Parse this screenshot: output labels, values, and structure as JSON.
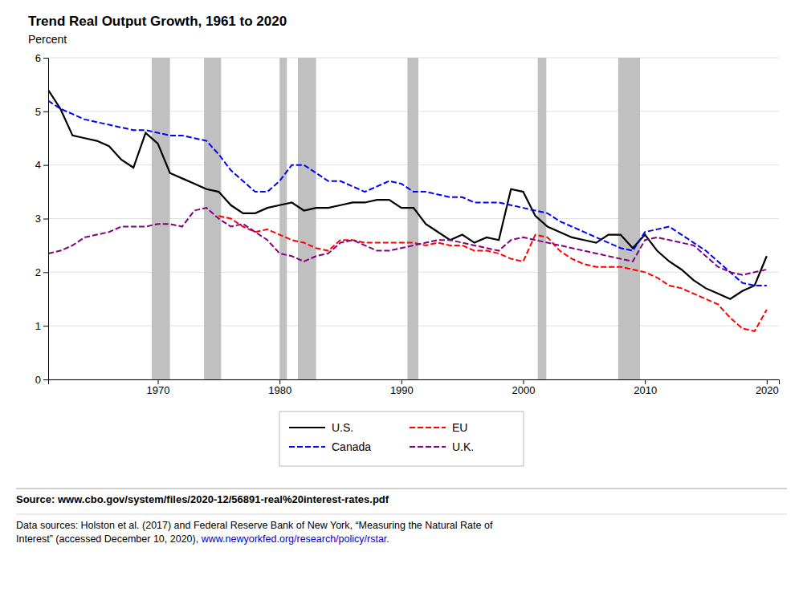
{
  "chart_data": {
    "type": "line",
    "title": "Trend Real Output Growth, 1961 to 2020",
    "y_label": "Percent",
    "x": [
      1961,
      1962,
      1963,
      1964,
      1965,
      1966,
      1967,
      1968,
      1969,
      1970,
      1971,
      1972,
      1973,
      1974,
      1975,
      1976,
      1977,
      1978,
      1979,
      1980,
      1981,
      1982,
      1983,
      1984,
      1985,
      1986,
      1987,
      1988,
      1989,
      1990,
      1991,
      1992,
      1993,
      1994,
      1995,
      1996,
      1997,
      1998,
      1999,
      2000,
      2001,
      2002,
      2003,
      2004,
      2005,
      2006,
      2007,
      2008,
      2009,
      2010,
      2011,
      2012,
      2013,
      2014,
      2015,
      2016,
      2017,
      2018,
      2019,
      2020
    ],
    "xlim": [
      1961,
      2021
    ],
    "xticks": [
      1970,
      1980,
      1990,
      2000,
      2010,
      2020
    ],
    "ylim": [
      0,
      6
    ],
    "yticks": [
      0,
      1,
      2,
      3,
      4,
      5,
      6
    ],
    "grid": true,
    "legend": "bottom",
    "shaded": {
      "color": "#c0c0c0",
      "ranges": [
        [
          1969.5,
          1971.0
        ],
        [
          1973.8,
          1975.2
        ],
        [
          1980.0,
          1980.6
        ],
        [
          1981.5,
          1983.0
        ],
        [
          1990.5,
          1991.4
        ],
        [
          2001.2,
          2001.9
        ],
        [
          2007.8,
          2009.6
        ]
      ]
    },
    "series": [
      {
        "name": "U.S.",
        "color": "#000000",
        "line_style": "solid",
        "values": [
          5.4,
          5.05,
          4.55,
          4.5,
          4.45,
          4.35,
          4.1,
          3.95,
          4.6,
          4.4,
          3.85,
          3.75,
          3.65,
          3.55,
          3.5,
          3.25,
          3.1,
          3.1,
          3.2,
          3.25,
          3.3,
          3.15,
          3.2,
          3.2,
          3.25,
          3.3,
          3.3,
          3.35,
          3.35,
          3.2,
          3.2,
          2.9,
          2.75,
          2.6,
          2.7,
          2.55,
          2.65,
          2.6,
          3.55,
          3.5,
          3.05,
          2.85,
          2.75,
          2.65,
          2.6,
          2.55,
          2.7,
          2.7,
          2.45,
          2.7,
          2.4,
          2.2,
          2.05,
          1.85,
          1.7,
          1.6,
          1.5,
          1.65,
          1.75,
          2.3
        ]
      },
      {
        "name": "Canada",
        "color": "#0000ff",
        "line_style": "dashed",
        "values": [
          5.2,
          5.05,
          4.95,
          4.85,
          4.8,
          4.75,
          4.7,
          4.65,
          4.65,
          4.6,
          4.55,
          4.55,
          4.5,
          4.45,
          4.2,
          3.9,
          3.7,
          3.5,
          3.5,
          3.7,
          4.0,
          4.0,
          3.85,
          3.7,
          3.7,
          3.6,
          3.5,
          3.6,
          3.7,
          3.65,
          3.5,
          3.5,
          3.45,
          3.4,
          3.4,
          3.3,
          3.3,
          3.3,
          3.25,
          3.2,
          3.15,
          3.1,
          2.95,
          2.85,
          2.75,
          2.65,
          2.55,
          2.45,
          2.4,
          2.75,
          2.8,
          2.85,
          2.7,
          2.55,
          2.4,
          2.2,
          2.0,
          1.8,
          1.75,
          1.75
        ]
      },
      {
        "name": "EU",
        "color": "#ff0000",
        "line_style": "dashed",
        "values": [
          null,
          null,
          null,
          null,
          null,
          null,
          null,
          null,
          null,
          null,
          null,
          null,
          null,
          null,
          3.05,
          3.0,
          2.85,
          2.75,
          2.8,
          2.7,
          2.6,
          2.55,
          2.45,
          2.4,
          2.6,
          2.6,
          2.55,
          2.55,
          2.55,
          2.55,
          2.55,
          2.5,
          2.55,
          2.5,
          2.5,
          2.4,
          2.4,
          2.35,
          2.25,
          2.2,
          2.7,
          2.65,
          2.4,
          2.25,
          2.15,
          2.1,
          2.1,
          2.1,
          2.05,
          2.0,
          1.9,
          1.75,
          1.7,
          1.6,
          1.5,
          1.4,
          1.15,
          0.95,
          0.9,
          1.3
        ]
      },
      {
        "name": "U.K.",
        "color": "#800080",
        "line_style": "dashed",
        "values": [
          2.35,
          2.4,
          2.5,
          2.65,
          2.7,
          2.75,
          2.85,
          2.85,
          2.85,
          2.9,
          2.9,
          2.85,
          3.15,
          3.2,
          3.0,
          2.85,
          2.9,
          2.75,
          2.6,
          2.35,
          2.3,
          2.2,
          2.3,
          2.35,
          2.55,
          2.6,
          2.5,
          2.4,
          2.4,
          2.45,
          2.5,
          2.55,
          2.6,
          2.6,
          2.55,
          2.5,
          2.45,
          2.4,
          2.6,
          2.65,
          2.6,
          2.55,
          2.5,
          2.45,
          2.4,
          2.35,
          2.3,
          2.25,
          2.2,
          2.6,
          2.65,
          2.6,
          2.55,
          2.5,
          2.3,
          2.1,
          2.0,
          1.95,
          2.0,
          2.05
        ]
      }
    ],
    "source": "Source: www.cbo.gov/system/files/2020-12/56891-real%20interest-rates.pdf",
    "footnote": "Data sources: Holston et al. (2017) and Federal Reserve Bank of New York, “Measuring the Natural Rate of\nInterest” (accessed December 10, 2020), ",
    "footnote_link": {
      "text": "www.newyorkfed.org/research/policy/rstar.",
      "color": "#0000cc"
    }
  }
}
